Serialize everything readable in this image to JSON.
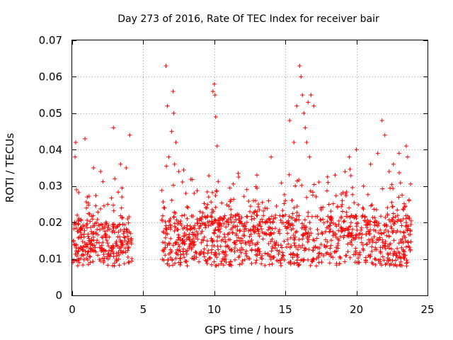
{
  "chart_data": {
    "type": "scatter",
    "title": "Day 273 of 2016, Rate Of TEC Index for receiver bair",
    "xlabel": "GPS time / hours",
    "ylabel": "ROTI / TECUs",
    "xlim": [
      0,
      25
    ],
    "ylim": [
      0,
      0.07
    ],
    "xticks": [
      0,
      5,
      10,
      15,
      20,
      25
    ],
    "xtick_labels": [
      "0",
      "5",
      "10",
      "15",
      "20",
      "25"
    ],
    "yticks": [
      0,
      0.01,
      0.02,
      0.03,
      0.04,
      0.05,
      0.06,
      0.07
    ],
    "ytick_labels": [
      "0",
      "0.01",
      "0.02",
      "0.03",
      "0.04",
      "0.05",
      "0.06",
      "0.07"
    ],
    "grid": true,
    "marker": "+",
    "marker_color": "#ff0000",
    "data_gap_hours": [
      4.2,
      6.3
    ],
    "series": [
      {
        "name": "ROTI",
        "x": [
          0.1,
          0.2,
          0.25,
          0.3,
          0.35,
          0.4,
          0.5,
          0.6,
          0.8,
          0.9,
          1.0,
          1.3,
          1.5,
          1.8,
          2.0,
          2.2,
          2.5,
          2.8,
          2.9,
          3.0,
          3.2,
          3.4,
          3.5,
          3.6,
          3.7,
          3.8,
          3.9,
          4.0,
          4.05,
          4.1,
          6.5,
          6.6,
          6.7,
          6.8,
          6.9,
          7.0,
          7.1,
          7.15,
          7.2,
          7.3,
          7.4,
          7.5,
          7.8,
          8.0,
          8.3,
          8.6,
          9.0,
          9.3,
          9.6,
          9.9,
          10.0,
          10.05,
          10.1,
          10.2,
          10.3,
          10.5,
          10.8,
          11.0,
          11.5,
          12.0,
          12.5,
          13.0,
          13.2,
          13.5,
          14.0,
          14.3,
          14.6,
          15.0,
          15.3,
          15.6,
          15.8,
          16.0,
          16.1,
          16.2,
          16.3,
          16.4,
          16.5,
          16.6,
          16.7,
          16.8,
          17.0,
          17.5,
          18.0,
          18.5,
          19.0,
          19.5,
          20.0,
          20.5,
          21.0,
          21.5,
          21.8,
          22.0,
          22.3,
          22.6,
          23.0,
          23.3,
          23.5,
          23.6,
          23.7
        ],
        "y": [
          0.015,
          0.038,
          0.042,
          0.029,
          0.022,
          0.012,
          0.009,
          0.018,
          0.011,
          0.043,
          0.024,
          0.014,
          0.035,
          0.011,
          0.034,
          0.009,
          0.025,
          0.013,
          0.046,
          0.032,
          0.019,
          0.036,
          0.027,
          0.012,
          0.015,
          0.035,
          0.021,
          0.009,
          0.044,
          0.017,
          0.024,
          0.063,
          0.052,
          0.038,
          0.021,
          0.045,
          0.056,
          0.05,
          0.036,
          0.042,
          0.018,
          0.034,
          0.012,
          0.028,
          0.019,
          0.014,
          0.023,
          0.016,
          0.027,
          0.056,
          0.058,
          0.055,
          0.049,
          0.041,
          0.018,
          0.015,
          0.012,
          0.02,
          0.014,
          0.015,
          0.023,
          0.033,
          0.012,
          0.017,
          0.038,
          0.022,
          0.017,
          0.026,
          0.048,
          0.042,
          0.052,
          0.063,
          0.06,
          0.055,
          0.05,
          0.046,
          0.042,
          0.053,
          0.038,
          0.055,
          0.052,
          0.024,
          0.031,
          0.033,
          0.026,
          0.038,
          0.04,
          0.03,
          0.036,
          0.039,
          0.048,
          0.044,
          0.034,
          0.036,
          0.039,
          0.021,
          0.041,
          0.038,
          0.026
        ]
      }
    ]
  }
}
